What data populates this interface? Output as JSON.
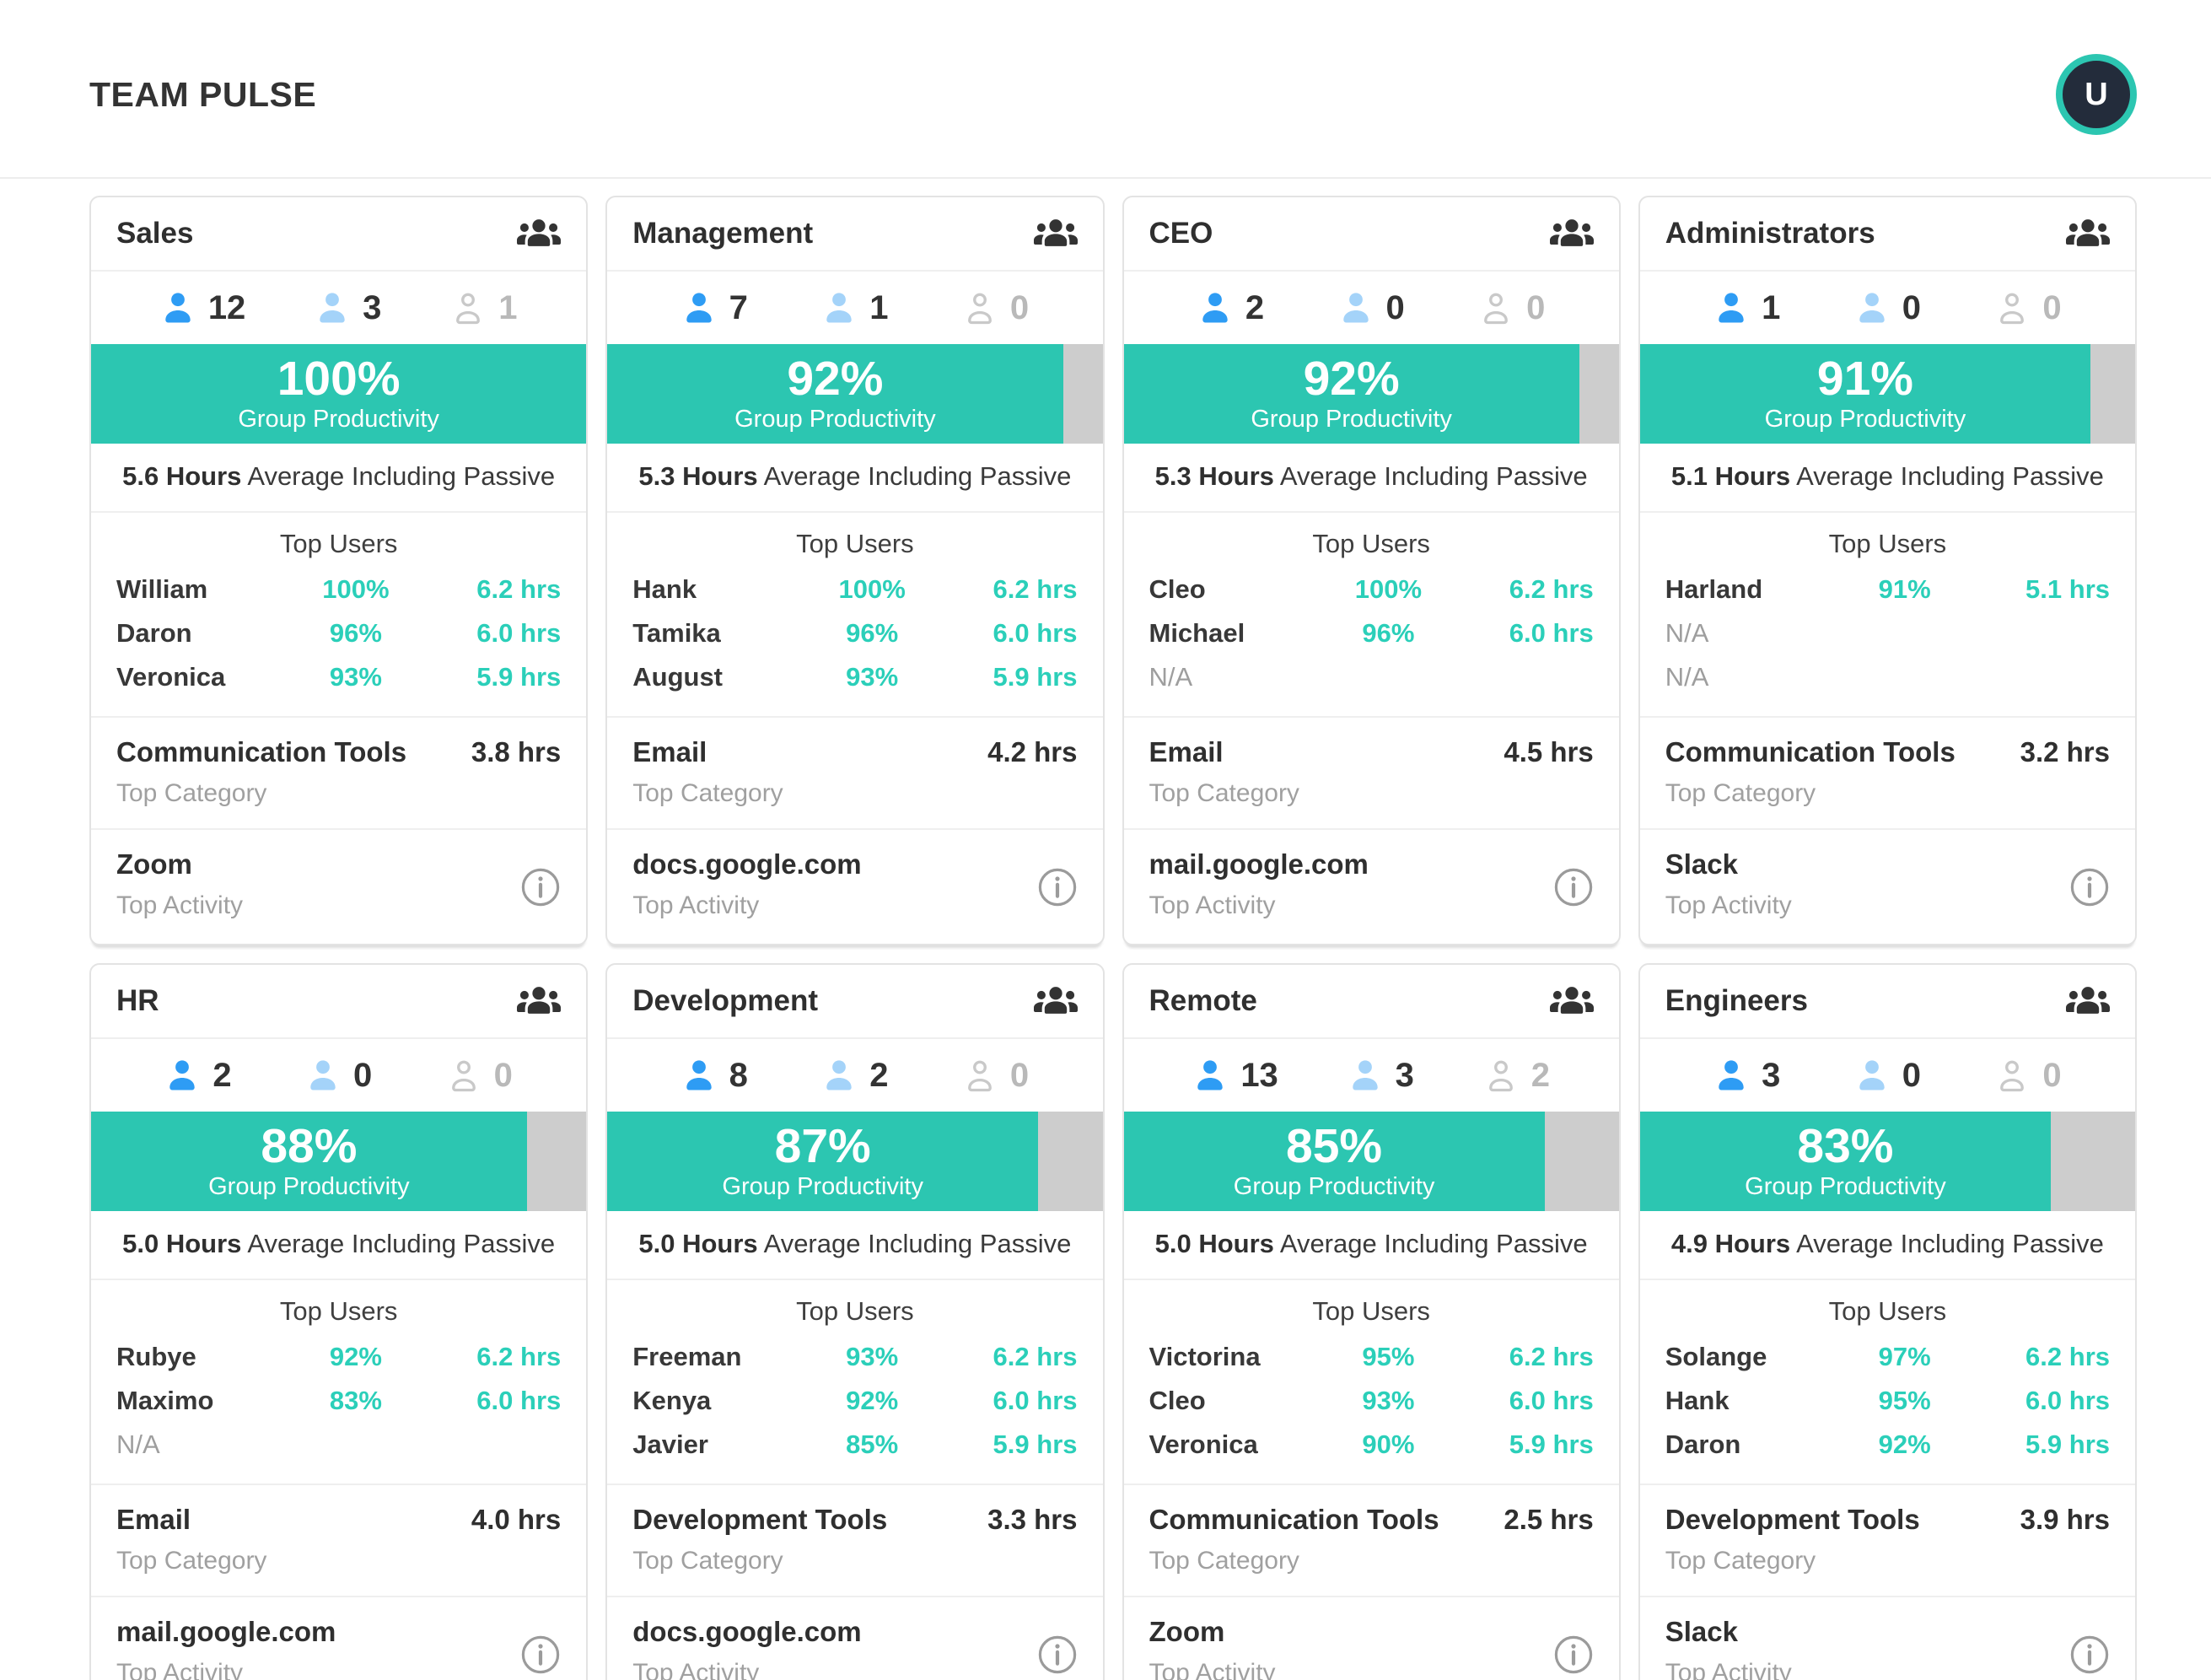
{
  "page": {
    "title": "TEAM PULSE",
    "avatar_initial": "U"
  },
  "labels": {
    "group_productivity": "Group Productivity",
    "avg_suffix": "Average Including Passive",
    "top_users": "Top Users",
    "top_category": "Top Category",
    "top_activity": "Top Activity",
    "na": "N/A"
  },
  "colors": {
    "teal": "#2cc6b1",
    "teal-text": "#2bcfb9",
    "bar-track": "#cdcdcd",
    "blue": "#2e9cf4",
    "light-blue": "#a4d3f9",
    "icon-gray": "#c9c9c9"
  },
  "teams": [
    {
      "name": "Sales",
      "counts": {
        "active": "12",
        "passive": "3",
        "inactive": "1"
      },
      "productivity": "100%",
      "avg_hours": "5.6 Hours",
      "top_users": [
        {
          "name": "William",
          "pct": "100%",
          "hrs": "6.2 hrs"
        },
        {
          "name": "Daron",
          "pct": "96%",
          "hrs": "6.0 hrs"
        },
        {
          "name": "Veronica",
          "pct": "93%",
          "hrs": "5.9 hrs"
        }
      ],
      "top_category": {
        "name": "Communication Tools",
        "hrs": "3.8 hrs"
      },
      "top_activity": "Zoom"
    },
    {
      "name": "Management",
      "counts": {
        "active": "7",
        "passive": "1",
        "inactive": "0"
      },
      "productivity": "92%",
      "avg_hours": "5.3 Hours",
      "top_users": [
        {
          "name": "Hank",
          "pct": "100%",
          "hrs": "6.2 hrs"
        },
        {
          "name": "Tamika",
          "pct": "96%",
          "hrs": "6.0 hrs"
        },
        {
          "name": "August",
          "pct": "93%",
          "hrs": "5.9 hrs"
        }
      ],
      "top_category": {
        "name": "Email",
        "hrs": "4.2 hrs"
      },
      "top_activity": "docs.google.com"
    },
    {
      "name": "CEO",
      "counts": {
        "active": "2",
        "passive": "0",
        "inactive": "0"
      },
      "productivity": "92%",
      "avg_hours": "5.3 Hours",
      "top_users": [
        {
          "name": "Cleo",
          "pct": "100%",
          "hrs": "6.2 hrs"
        },
        {
          "name": "Michael",
          "pct": "96%",
          "hrs": "6.0 hrs"
        },
        {
          "name": "N/A",
          "pct": "",
          "hrs": ""
        }
      ],
      "top_category": {
        "name": "Email",
        "hrs": "4.5 hrs"
      },
      "top_activity": "mail.google.com"
    },
    {
      "name": "Administrators",
      "counts": {
        "active": "1",
        "passive": "0",
        "inactive": "0"
      },
      "productivity": "91%",
      "avg_hours": "5.1 Hours",
      "top_users": [
        {
          "name": "Harland",
          "pct": "91%",
          "hrs": "5.1 hrs"
        },
        {
          "name": "N/A",
          "pct": "",
          "hrs": ""
        },
        {
          "name": "N/A",
          "pct": "",
          "hrs": ""
        }
      ],
      "top_category": {
        "name": "Communication Tools",
        "hrs": "3.2 hrs"
      },
      "top_activity": "Slack"
    },
    {
      "name": "HR",
      "counts": {
        "active": "2",
        "passive": "0",
        "inactive": "0"
      },
      "productivity": "88%",
      "avg_hours": "5.0 Hours",
      "top_users": [
        {
          "name": "Rubye",
          "pct": "92%",
          "hrs": "6.2 hrs"
        },
        {
          "name": "Maximo",
          "pct": "83%",
          "hrs": "6.0 hrs"
        },
        {
          "name": "N/A",
          "pct": "",
          "hrs": ""
        }
      ],
      "top_category": {
        "name": "Email",
        "hrs": "4.0 hrs"
      },
      "top_activity": "mail.google.com"
    },
    {
      "name": "Development",
      "counts": {
        "active": "8",
        "passive": "2",
        "inactive": "0"
      },
      "productivity": "87%",
      "avg_hours": "5.0 Hours",
      "top_users": [
        {
          "name": "Freeman",
          "pct": "93%",
          "hrs": "6.2 hrs"
        },
        {
          "name": "Kenya",
          "pct": "92%",
          "hrs": "6.0 hrs"
        },
        {
          "name": "Javier",
          "pct": "85%",
          "hrs": "5.9 hrs"
        }
      ],
      "top_category": {
        "name": "Development Tools",
        "hrs": "3.3 hrs"
      },
      "top_activity": "docs.google.com"
    },
    {
      "name": "Remote",
      "counts": {
        "active": "13",
        "passive": "3",
        "inactive": "2"
      },
      "productivity": "85%",
      "avg_hours": "5.0 Hours",
      "top_users": [
        {
          "name": "Victorina",
          "pct": "95%",
          "hrs": "6.2 hrs"
        },
        {
          "name": "Cleo",
          "pct": "93%",
          "hrs": "6.0 hrs"
        },
        {
          "name": "Veronica",
          "pct": "90%",
          "hrs": "5.9 hrs"
        }
      ],
      "top_category": {
        "name": "Communication Tools",
        "hrs": "2.5 hrs"
      },
      "top_activity": "Zoom"
    },
    {
      "name": "Engineers",
      "counts": {
        "active": "3",
        "passive": "0",
        "inactive": "0"
      },
      "productivity": "83%",
      "avg_hours": "4.9 Hours",
      "top_users": [
        {
          "name": "Solange",
          "pct": "97%",
          "hrs": "6.2 hrs"
        },
        {
          "name": "Hank",
          "pct": "95%",
          "hrs": "6.0 hrs"
        },
        {
          "name": "Daron",
          "pct": "92%",
          "hrs": "5.9 hrs"
        }
      ],
      "top_category": {
        "name": "Development Tools",
        "hrs": "3.9 hrs"
      },
      "top_activity": "Slack"
    }
  ]
}
